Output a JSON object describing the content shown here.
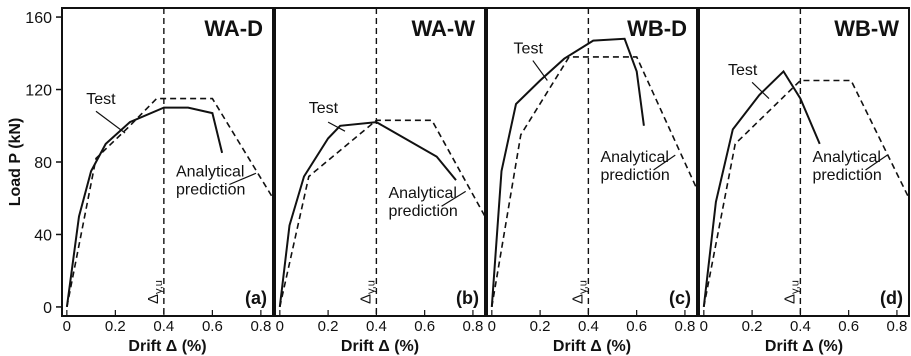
{
  "figure": {
    "ylabel": "Load P (kN)",
    "yticks": [
      "0",
      "40",
      "80",
      "120",
      "160"
    ],
    "colors": {
      "test": "#111111",
      "analytical": "#111111",
      "frame": "#111111",
      "grid": "#ffffff"
    }
  },
  "chart_data": [
    {
      "type": "line",
      "title": "WA-D",
      "panel_letter": "(a)",
      "xlabel": "Drift Δ (%)",
      "ylabel": "Load P (kN)",
      "xticks": [
        "0",
        "0.2",
        "0.4",
        "0.6",
        "0.8"
      ],
      "xlim": [
        -0.02,
        0.85
      ],
      "ylim": [
        -5,
        165
      ],
      "delta_line_x": 0.4,
      "delta_label": "Δy,u",
      "series": [
        {
          "name": "Test",
          "style": "solid",
          "x": [
            0,
            0.05,
            0.1,
            0.16,
            0.26,
            0.4,
            0.5,
            0.6,
            0.64
          ],
          "y": [
            0,
            50,
            75,
            90,
            102,
            110,
            110,
            107,
            85
          ]
        },
        {
          "name": "Analytical prediction",
          "style": "dashed",
          "x": [
            0,
            0.12,
            0.26,
            0.37,
            0.6,
            0.85
          ],
          "y": [
            0,
            82,
            100,
            115,
            115,
            60
          ]
        }
      ],
      "annotations": {
        "test": "Test",
        "analytical": [
          "Analytical",
          "prediction"
        ]
      }
    },
    {
      "type": "line",
      "title": "WA-W",
      "panel_letter": "(b)",
      "xlabel": "Drift Δ (%)",
      "ylabel": "Load P (kN)",
      "xticks": [
        "0",
        "0.2",
        "0.4",
        "0.6",
        "0.8"
      ],
      "xlim": [
        -0.02,
        0.85
      ],
      "ylim": [
        -5,
        165
      ],
      "delta_line_x": 0.4,
      "delta_label": "Δy,u",
      "series": [
        {
          "name": "Test",
          "style": "solid",
          "x": [
            0,
            0.04,
            0.1,
            0.2,
            0.25,
            0.4,
            0.65,
            0.73
          ],
          "y": [
            0,
            45,
            72,
            93,
            100,
            102,
            83,
            70
          ]
        },
        {
          "name": "Analytical prediction",
          "style": "dashed",
          "x": [
            0,
            0.12,
            0.4,
            0.63,
            0.85
          ],
          "y": [
            0,
            72,
            103,
            103,
            50
          ]
        }
      ],
      "annotations": {
        "test": "Test",
        "analytical": [
          "Analytical",
          "prediction"
        ]
      }
    },
    {
      "type": "line",
      "title": "WB-D",
      "panel_letter": "(c)",
      "xlabel": "Drift Δ (%)",
      "ylabel": "Load P (kN)",
      "xticks": [
        "0",
        "0.2",
        "0.4",
        "0.6",
        "0.8"
      ],
      "xlim": [
        -0.02,
        0.85
      ],
      "ylim": [
        -5,
        165
      ],
      "delta_line_x": 0.4,
      "delta_label": "Δy,u",
      "series": [
        {
          "name": "Test",
          "style": "solid",
          "x": [
            0,
            0.04,
            0.1,
            0.2,
            0.3,
            0.42,
            0.55,
            0.6,
            0.63
          ],
          "y": [
            0,
            75,
            112,
            125,
            137,
            147,
            148,
            130,
            100
          ]
        },
        {
          "name": "Analytical prediction",
          "style": "dashed",
          "x": [
            0,
            0.12,
            0.32,
            0.6,
            0.85
          ],
          "y": [
            0,
            95,
            138,
            138,
            65
          ]
        }
      ],
      "annotations": {
        "test": "Test",
        "analytical": [
          "Analytical",
          "prediction"
        ]
      }
    },
    {
      "type": "line",
      "title": "WB-W",
      "panel_letter": "(d)",
      "xlabel": "Drift Δ (%)",
      "ylabel": "Load P (kN)",
      "xticks": [
        "0",
        "0.2",
        "0.4",
        "0.6",
        "0.8"
      ],
      "xlim": [
        -0.02,
        0.85
      ],
      "ylim": [
        -5,
        165
      ],
      "delta_line_x": 0.4,
      "delta_label": "Δy,u",
      "series": [
        {
          "name": "Test",
          "style": "solid",
          "x": [
            0,
            0.05,
            0.12,
            0.23,
            0.33,
            0.4,
            0.48
          ],
          "y": [
            0,
            58,
            98,
            117,
            130,
            115,
            90
          ]
        },
        {
          "name": "Analytical prediction",
          "style": "dashed",
          "x": [
            0,
            0.13,
            0.4,
            0.61,
            0.85
          ],
          "y": [
            0,
            90,
            125,
            125,
            60
          ]
        }
      ],
      "annotations": {
        "test": "Test",
        "analytical": [
          "Analytical",
          "prediction"
        ]
      }
    }
  ]
}
